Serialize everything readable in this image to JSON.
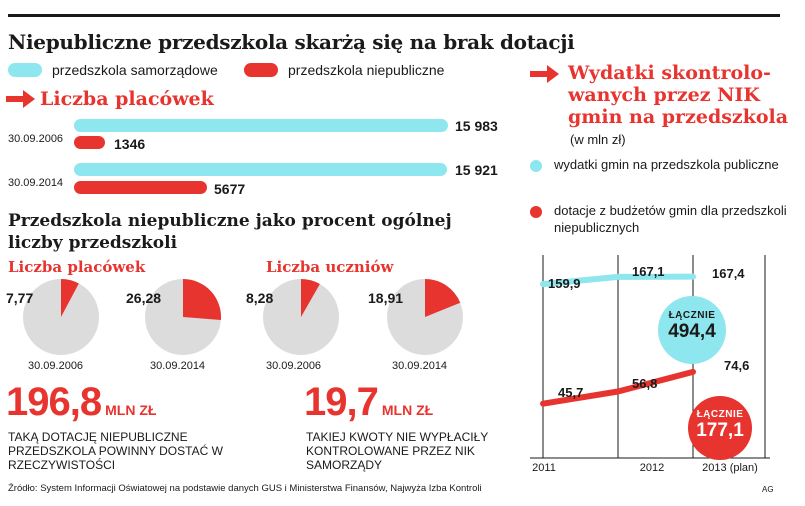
{
  "title": "Niepubliczne przedszkola skarżą się na brak dotacji",
  "colors": {
    "cyan": "#8ee6ee",
    "red": "#e8342f",
    "grey": "#dcdcdc",
    "dark": "#1a1a1a"
  },
  "legend": {
    "public_label": "przedszkola samorządowe",
    "private_label": "przedszkola niepubliczne"
  },
  "count_section": {
    "heading": "Liczba placówek",
    "rows": [
      {
        "date": "30.09.2006",
        "public": 15983,
        "private": 1346,
        "public_label": "15 983",
        "private_label": "1346"
      },
      {
        "date": "30.09.2014",
        "public": 15921,
        "private": 5677,
        "public_label": "15 921",
        "private_label": "5677"
      }
    ],
    "scale_max": 15983
  },
  "percent_section": {
    "subtitle": "Przedszkola niepubliczne jako procent ogólnej liczby przedszkoli",
    "groups": [
      {
        "heading": "Liczba placówek",
        "pies": [
          {
            "value": 7.77,
            "label": "7,77",
            "date": "30.09.2006"
          },
          {
            "value": 26.28,
            "label": "26,28",
            "date": "30.09.2014"
          }
        ]
      },
      {
        "heading": "Liczba uczniów",
        "pies": [
          {
            "value": 8.28,
            "label": "8,28",
            "date": "30.09.2006"
          },
          {
            "value": 18.91,
            "label": "18,91",
            "date": "30.09.2014"
          }
        ]
      }
    ]
  },
  "facts": [
    {
      "number": "196,8",
      "unit": "MLN ZŁ",
      "text": "Taką dotację niepubliczne przedszkola powinny dostać w rzeczywistości"
    },
    {
      "number": "19,7",
      "unit": "MLN ZŁ",
      "text": "Takiej kwoty nie wypłaciły kontrolowane przez NIK samorządy"
    }
  ],
  "source": "Źródło: System Informacji Oświatowej na podstawie danych GUS i Ministerstwa Finansów, Najwyża Izba Kontroli",
  "credit": "AG",
  "right_panel": {
    "heading": "Wydatki skontrolowanych przez NIK gmin na przedszkola",
    "heading_lines": [
      "Wydatki skontrolo-",
      "wanych przez NIK",
      "gmin na przedszkola"
    ],
    "unit": "(w mln zł)",
    "legend_public": "wydatki gmin na przedszkola publiczne",
    "legend_private": "dotacje z budżetów gmin dla przedszkoli niepublicznych"
  },
  "chart_data": {
    "type": "line",
    "title": "Wydatki skontrolowanych przez NIK gmin na przedszkola",
    "ylabel": "mln zł",
    "categories": [
      "2011",
      "2012",
      "2013 (plan)"
    ],
    "series": [
      {
        "name": "wydatki gmin na przedszkola publiczne",
        "values": [
          159.9,
          167.1,
          167.4
        ],
        "labels": [
          "159,9",
          "167,1",
          "167,4"
        ],
        "total": 494.4,
        "total_label": "494,4",
        "total_caption": "ŁĄCZNIE"
      },
      {
        "name": "dotacje z budżetów gmin dla przedszkoli niepublicznych",
        "values": [
          45.7,
          56.8,
          74.6
        ],
        "labels": [
          "45,7",
          "56,8",
          "74,6"
        ],
        "total": 177.1,
        "total_label": "177,1",
        "total_caption": "ŁĄCZNIE"
      }
    ]
  }
}
